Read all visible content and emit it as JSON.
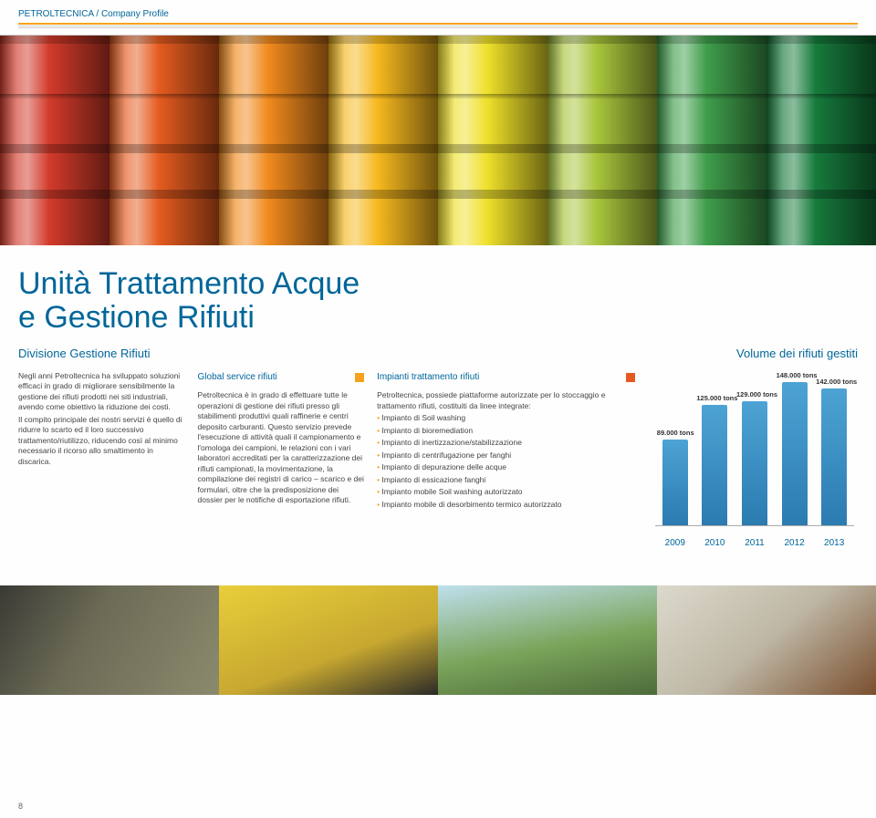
{
  "header": "PETROLTECNICA / Company Profile",
  "title_line1": "Unità Trattamento Acque",
  "title_line2": "e Gestione Rifiuti",
  "subtitle_left": "Divisione Gestione Rifiuti",
  "subtitle_right": "Volume dei rifiuti gestiti",
  "hero_colors": [
    "#d23a2a",
    "#e55b1f",
    "#f08a1d",
    "#f6b81e",
    "#efe02a",
    "#a8c53b",
    "#3f9e4b",
    "#167a3b"
  ],
  "col1": {
    "text": "Negli anni Petroltecnica ha sviluppato soluzioni efficaci in grado di migliorare sensibilmente la gestione dei rifiuti prodotti nei siti industriali, avendo come obiettivo la riduzione dei costi.\nIl compito principale dei nostri servizi è quello di ridurre lo scarto ed il loro successivo trattamento/riutilizzo, riducendo così al minimo necessario il ricorso allo smaltimento in discarica."
  },
  "col2": {
    "title": "Global service rifiuti",
    "color": "#f6a21e",
    "text": "Petroltecnica è in grado di effettuare tutte le operazioni di gestione dei rifiuti presso gli stabilimenti produttivi quali raffinerie e centri deposito carburanti. Questo servizio prevede l'esecuzione di attività quali il campionamento e l'omologa dei campioni, le relazioni con i vari laboratori accreditati per la caratterizzazione dei rifiuti campionati, la movimentazione, la compilazione dei registri di carico – scarico e dei formulari, oltre che la predisposizione dei dossier per le notifiche di esportazione rifiuti."
  },
  "col3": {
    "title": "Impianti trattamento rifiuti",
    "color": "#e55b1f",
    "intro": "Petroltecnica, possiede piattaforme autorizzate per lo stoccaggio e trattamento rifiuti, costituiti da linee integrate:",
    "bullets": [
      "Impianto di Soil washing",
      "Impianto di bioremediation",
      "Impianto di inertizzazione/stabilizzazione",
      "Impianto di centrifugazione per fanghi",
      "Impianto di depurazione delle acque",
      "Impianto di essicazione fanghi",
      "Impianto mobile Soil washing autorizzato",
      "Impianto mobile di desorbimento termico autorizzato"
    ]
  },
  "chart": {
    "type": "bar",
    "bar_color_top": "#4da3d4",
    "bar_color_bottom": "#2b7bb0",
    "bars": [
      {
        "year": "2009",
        "label": "89.000 tons",
        "value": 89
      },
      {
        "year": "2010",
        "label": "125.000 tons",
        "value": 125
      },
      {
        "year": "2011",
        "label": "129.000 tons",
        "value": 129
      },
      {
        "year": "2012",
        "label": "148.000 tons",
        "value": 148
      },
      {
        "year": "2013",
        "label": "142.000 tons",
        "value": 142
      }
    ],
    "ymax": 160
  },
  "bottom_photos_bg": [
    "linear-gradient(120deg,#3a3a35,#6b6a55 40%,#8c8a6d)",
    "linear-gradient(160deg,#e8ce3a,#c8a830 60%,#2a2a28)",
    "linear-gradient(170deg,#bfe0ef 0%,#7aa45a 55%,#4d6b3a)",
    "linear-gradient(140deg,#dcd9cc,#beb7a5 50%,#7a4f2e)"
  ],
  "page_number": "8"
}
